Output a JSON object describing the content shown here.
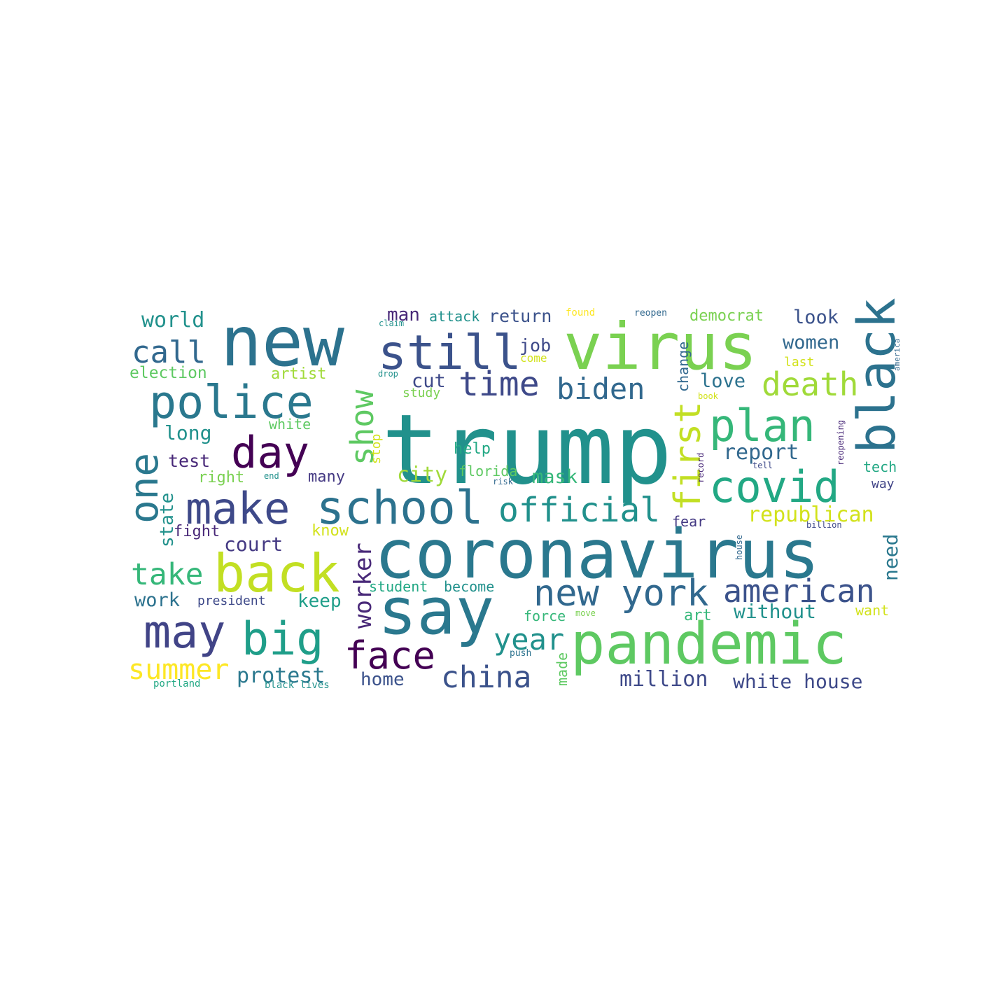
{
  "words": [
    {
      "text": "trump",
      "color": "#21918c"
    },
    {
      "text": "coronavirus",
      "color": "#2a788e"
    },
    {
      "text": "new",
      "color": "#2c728e"
    },
    {
      "text": "virus",
      "color": "#7ad151"
    },
    {
      "text": "say",
      "color": "#2a788e"
    },
    {
      "text": "pandemic",
      "color": "#5ec962"
    },
    {
      "text": "school",
      "color": "#2c728e"
    },
    {
      "text": "back",
      "color": "#c2df23"
    },
    {
      "text": "police",
      "color": "#2a788e"
    },
    {
      "text": "still",
      "color": "#3b528b"
    },
    {
      "text": "make",
      "color": "#3e4989"
    },
    {
      "text": "plan",
      "color": "#35b779"
    },
    {
      "text": "covid",
      "color": "#22a884"
    },
    {
      "text": "black",
      "color": "#2c728e"
    },
    {
      "text": "new york",
      "color": "#31688e"
    },
    {
      "text": "may",
      "color": "#414487"
    },
    {
      "text": "big",
      "color": "#1f9e89"
    },
    {
      "text": "day",
      "color": "#440154"
    },
    {
      "text": "one",
      "color": "#2a788e"
    },
    {
      "text": "official",
      "color": "#21918c"
    },
    {
      "text": "american",
      "color": "#3b528b"
    },
    {
      "text": "time",
      "color": "#3e4989"
    },
    {
      "text": "biden",
      "color": "#31688e"
    },
    {
      "text": "face",
      "color": "#440154"
    },
    {
      "text": "death",
      "color": "#a0da39"
    },
    {
      "text": "first",
      "color": "#c2df23"
    },
    {
      "text": "call",
      "color": "#31688e"
    },
    {
      "text": "show",
      "color": "#5ec962"
    },
    {
      "text": "take",
      "color": "#35b779"
    },
    {
      "text": "summer",
      "color": "#fde725"
    },
    {
      "text": "china",
      "color": "#3b528b"
    },
    {
      "text": "year",
      "color": "#21918c"
    },
    {
      "text": "worker",
      "color": "#482878"
    },
    {
      "text": "million",
      "color": "#3e4989"
    },
    {
      "text": "white house",
      "color": "#3e4989"
    },
    {
      "text": "republican",
      "color": "#d2e21b"
    },
    {
      "text": "protest",
      "color": "#2a788e"
    },
    {
      "text": "report",
      "color": "#31688e"
    },
    {
      "text": "world",
      "color": "#21918c"
    },
    {
      "text": "without",
      "color": "#21918c"
    },
    {
      "text": "court",
      "color": "#443983"
    },
    {
      "text": "women",
      "color": "#31688e"
    },
    {
      "text": "look",
      "color": "#3b528b"
    },
    {
      "text": "state",
      "color": "#21918c"
    },
    {
      "text": "work",
      "color": "#2c728e"
    },
    {
      "text": "long",
      "color": "#21918c"
    },
    {
      "text": "love",
      "color": "#2c728e"
    },
    {
      "text": "cut",
      "color": "#3e4989"
    },
    {
      "text": "job",
      "color": "#3e4989"
    },
    {
      "text": "home",
      "color": "#3b528b"
    },
    {
      "text": "mask",
      "color": "#35b779"
    },
    {
      "text": "city",
      "color": "#a0da39"
    },
    {
      "text": "return",
      "color": "#3b528b"
    },
    {
      "text": "man",
      "color": "#482878"
    },
    {
      "text": "keep",
      "color": "#1f9e89"
    },
    {
      "text": "test",
      "color": "#482878"
    },
    {
      "text": "election",
      "color": "#5ec962"
    },
    {
      "text": "need",
      "color": "#2a788e"
    },
    {
      "text": "democrat",
      "color": "#7ad151"
    },
    {
      "text": "attack",
      "color": "#21918c"
    },
    {
      "text": "fight",
      "color": "#482878"
    },
    {
      "text": "artist",
      "color": "#a0da39"
    },
    {
      "text": "fear",
      "color": "#443983"
    },
    {
      "text": "change",
      "color": "#31688e"
    },
    {
      "text": "white",
      "color": "#5ec962"
    },
    {
      "text": "right",
      "color": "#7ad151"
    },
    {
      "text": "many",
      "color": "#443983"
    },
    {
      "text": "art",
      "color": "#35b779"
    },
    {
      "text": "help",
      "color": "#22a884"
    },
    {
      "text": "florida",
      "color": "#5ec962"
    },
    {
      "text": "know",
      "color": "#d2e21b"
    },
    {
      "text": "tech",
      "color": "#22a884"
    },
    {
      "text": "way",
      "color": "#414487"
    },
    {
      "text": "want",
      "color": "#d2e21b"
    },
    {
      "text": "president",
      "color": "#3e4989"
    },
    {
      "text": "student",
      "color": "#22a884"
    },
    {
      "text": "become",
      "color": "#21918c"
    },
    {
      "text": "force",
      "color": "#35b779"
    },
    {
      "text": "last",
      "color": "#d2e21b"
    },
    {
      "text": "made",
      "color": "#5ec962"
    },
    {
      "text": "study",
      "color": "#7ad151"
    },
    {
      "text": "come",
      "color": "#d2e21b"
    },
    {
      "text": "stop",
      "color": "#d2e21b"
    },
    {
      "text": "found",
      "color": "#fde725"
    },
    {
      "text": "reopen",
      "color": "#31688e"
    },
    {
      "text": "book",
      "color": "#d2e21b"
    },
    {
      "text": "portland",
      "color": "#22a884"
    },
    {
      "text": "black lives",
      "color": "#21918c"
    },
    {
      "text": "push",
      "color": "#2c728e"
    },
    {
      "text": "claim",
      "color": "#21918c"
    },
    {
      "text": "drop",
      "color": "#21918c"
    },
    {
      "text": "end",
      "color": "#21918c"
    },
    {
      "text": "risk",
      "color": "#31688e"
    },
    {
      "text": "tell",
      "color": "#3e4989"
    },
    {
      "text": "move",
      "color": "#7ad151"
    },
    {
      "text": "record",
      "color": "#482878"
    },
    {
      "text": "reopening",
      "color": "#482878"
    },
    {
      "text": "house",
      "color": "#31688e"
    },
    {
      "text": "billion",
      "color": "#3e4989"
    },
    {
      "text": "america",
      "color": "#31688e"
    }
  ]
}
